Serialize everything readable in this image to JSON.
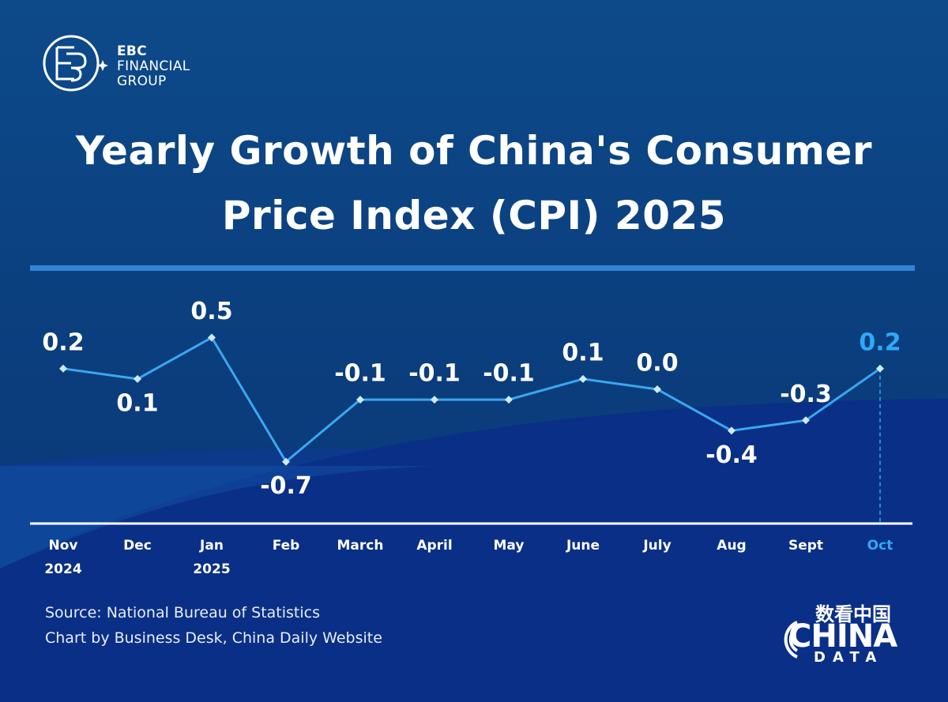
{
  "logo": {
    "lines": [
      "EBC",
      "FINANCIAL",
      "GROUP"
    ]
  },
  "chart_data": {
    "type": "line",
    "title": "Yearly Growth of China's Consumer Price Index (CPI) 2025",
    "categories": [
      "Nov\n2024",
      "Dec",
      "Jan\n2025",
      "Feb",
      "March",
      "April",
      "May",
      "June",
      "July",
      "Aug",
      "Sept",
      "Oct"
    ],
    "values": [
      0.2,
      0.1,
      0.5,
      -0.7,
      -0.1,
      -0.1,
      -0.1,
      0.1,
      0.0,
      -0.4,
      -0.3,
      0.2
    ],
    "value_labels": [
      "0.2",
      "0.1",
      "0.5",
      "-0.7",
      "-0.1",
      "-0.1",
      "-0.1",
      "0.1",
      "0.0",
      "-0.4",
      "-0.3",
      "0.2"
    ],
    "color": "#3aa8f0",
    "label_color": "#ffffff",
    "highlight_color": "#2eaaf7"
  },
  "footer": {
    "source": "Source: National Bureau of Statistics",
    "credit": "Chart by Business Desk, China Daily Website",
    "brand_cn": "数看中国",
    "brand": "CHINA",
    "brand_sub": "DATA"
  }
}
